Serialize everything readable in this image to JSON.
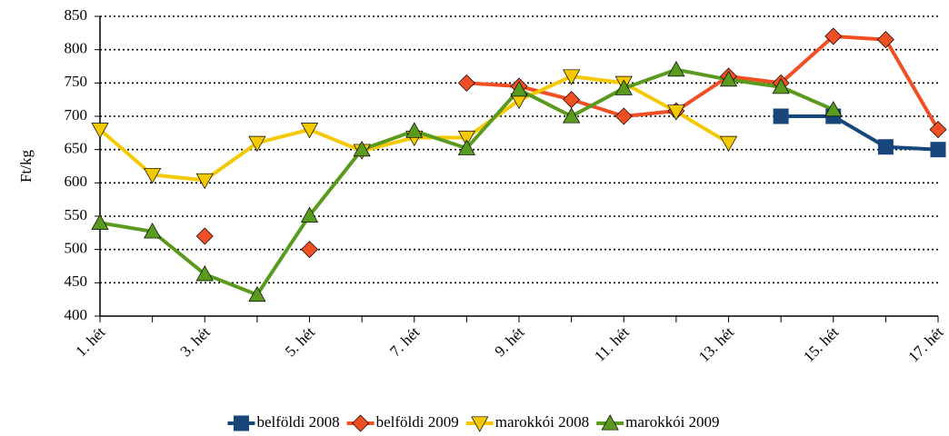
{
  "chart_data": {
    "type": "line",
    "ylabel": "Ft/kg",
    "categories": [
      "1. hét",
      null,
      "3. hét",
      null,
      "5. hét",
      null,
      "7. hét",
      null,
      "9. hét",
      null,
      "11. hét",
      null,
      "13. hét",
      null,
      "15. hét",
      null,
      "17. hét"
    ],
    "series": [
      {
        "name": "belföldi 2008",
        "color": "#17477a",
        "marker": "square",
        "values": [
          null,
          null,
          null,
          null,
          null,
          null,
          null,
          null,
          null,
          null,
          null,
          null,
          null,
          700,
          700,
          654,
          650
        ]
      },
      {
        "name": "belföldi 2009",
        "color": "#f04e23",
        "marker": "diamond",
        "values": [
          null,
          null,
          520,
          null,
          500,
          null,
          null,
          750,
          745,
          725,
          700,
          708,
          760,
          750,
          820,
          815,
          680
        ]
      },
      {
        "name": "marokkói 2008",
        "color": "#f5c900",
        "marker": "triangle-down",
        "values": [
          680,
          612,
          604,
          660,
          680,
          648,
          668,
          668,
          724,
          760,
          750,
          707,
          660,
          null,
          null,
          null,
          null
        ]
      },
      {
        "name": "marokkói 2009",
        "color": "#5a9a1e",
        "marker": "triangle-up",
        "values": [
          540,
          527,
          463,
          432,
          551,
          650,
          678,
          652,
          740,
          700,
          742,
          770,
          755,
          744,
          710,
          null,
          null
        ]
      }
    ],
    "ylim": [
      400,
      850
    ],
    "yticks": [
      400,
      450,
      500,
      550,
      600,
      650,
      700,
      750,
      800,
      850
    ],
    "grid": true,
    "legend": "bottom"
  }
}
